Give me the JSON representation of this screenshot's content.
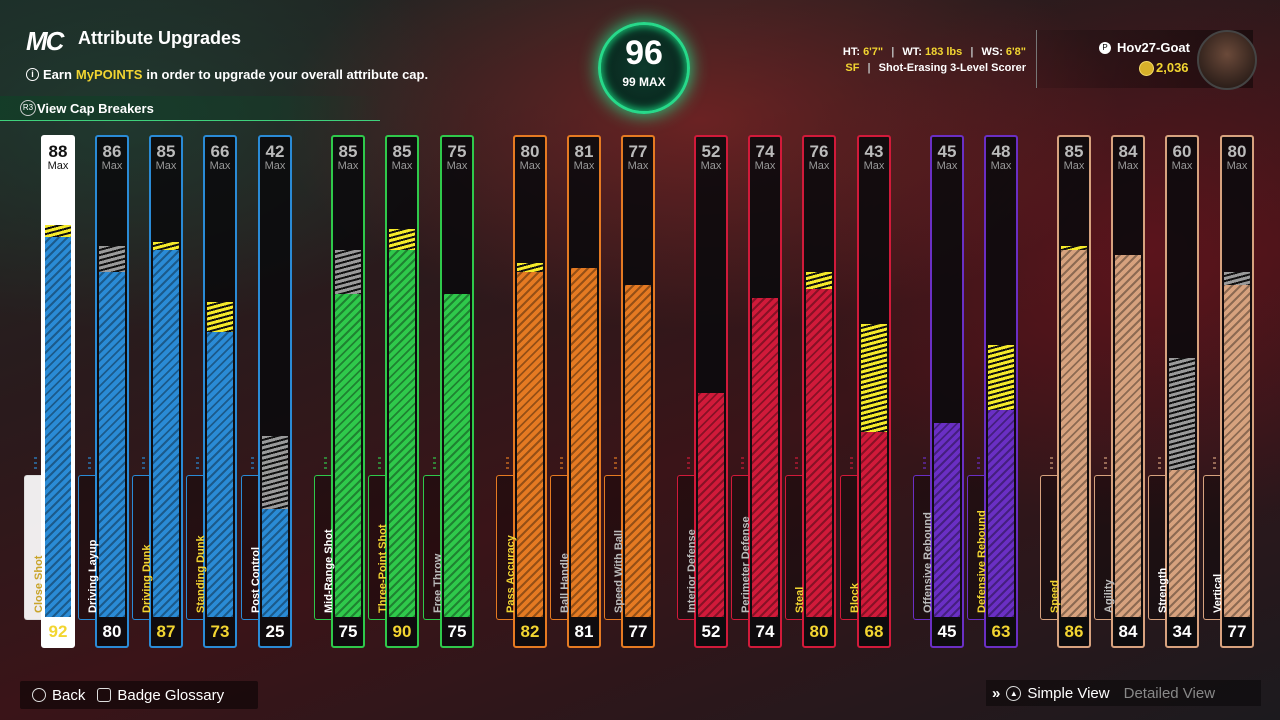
{
  "header": {
    "logo": "MC",
    "title": "Attribute Upgrades",
    "subtitle_pre": "Earn",
    "subtitle_highlight": "MyPOINTS",
    "subtitle_post": "in order to upgrade your overall attribute cap.",
    "cap_breakers_label": "View Cap Breakers"
  },
  "overall": {
    "value": "96",
    "max_label": "99 MAX"
  },
  "player": {
    "ht_label": "HT:",
    "ht": "6'7\"",
    "wt_label": "WT:",
    "wt": "183 lbs",
    "ws_label": "WS:",
    "ws": "6'8\"",
    "position": "SF",
    "archetype": "Shot-Erasing 3-Level Scorer",
    "gamertag": "Hov27-Goat",
    "vc": "2,036"
  },
  "max_label": "Max",
  "colors": {
    "blue": "#2a8bd6",
    "green": "#2fc94b",
    "orange": "#e57a22",
    "red": "#d11a3a",
    "purple": "#6a2fc4",
    "tan": "#d7a27e"
  },
  "attributes": [
    {
      "name": "Close Shot",
      "cap": "88",
      "current": "92",
      "yellow": 3,
      "gray": 0,
      "color": "blue",
      "selected": true,
      "label_yellow": true
    },
    {
      "name": "Driving Layup",
      "cap": "86",
      "current": "80",
      "yellow": 0,
      "gray": 6,
      "color": "blue",
      "label_yellow": false
    },
    {
      "name": "Driving Dunk",
      "cap": "85",
      "current": "87",
      "yellow": 2,
      "gray": 0,
      "color": "blue",
      "label_yellow": true
    },
    {
      "name": "Standing Dunk",
      "cap": "66",
      "current": "73",
      "yellow": 7,
      "gray": 0,
      "color": "blue",
      "label_yellow": true
    },
    {
      "name": "Post Control",
      "cap": "42",
      "current": "25",
      "yellow": 0,
      "gray": 17,
      "color": "blue",
      "label_yellow": false
    },
    {
      "name": "Mid-Range Shot",
      "cap": "85",
      "current": "75",
      "yellow": 0,
      "gray": 10,
      "color": "green",
      "label_yellow": false
    },
    {
      "name": "Three-Point Shot",
      "cap": "85",
      "current": "90",
      "yellow": 5,
      "gray": 0,
      "color": "green",
      "label_yellow": true
    },
    {
      "name": "Free Throw",
      "cap": "75",
      "current": "75",
      "yellow": 0,
      "gray": 0,
      "color": "green",
      "label_yellow": false
    },
    {
      "name": "Pass Accuracy",
      "cap": "80",
      "current": "82",
      "yellow": 2,
      "gray": 0,
      "color": "orange",
      "label_yellow": true
    },
    {
      "name": "Ball Handle",
      "cap": "81",
      "current": "81",
      "yellow": 0,
      "gray": 0,
      "color": "orange",
      "label_yellow": false
    },
    {
      "name": "Speed With Ball",
      "cap": "77",
      "current": "77",
      "yellow": 0,
      "gray": 0,
      "color": "orange",
      "label_yellow": false
    },
    {
      "name": "Interior Defense",
      "cap": "52",
      "current": "52",
      "yellow": 0,
      "gray": 0,
      "color": "red",
      "label_yellow": false
    },
    {
      "name": "Perimeter Defense",
      "cap": "74",
      "current": "74",
      "yellow": 0,
      "gray": 0,
      "color": "red",
      "label_yellow": false
    },
    {
      "name": "Steal",
      "cap": "76",
      "current": "80",
      "yellow": 4,
      "gray": 0,
      "color": "red",
      "label_yellow": true
    },
    {
      "name": "Block",
      "cap": "43",
      "current": "68",
      "yellow": 25,
      "gray": 0,
      "color": "red",
      "label_yellow": true
    },
    {
      "name": "Offensive Rebound",
      "cap": "45",
      "current": "45",
      "yellow": 0,
      "gray": 0,
      "color": "purple",
      "label_yellow": false
    },
    {
      "name": "Defensive Rebound",
      "cap": "48",
      "current": "63",
      "yellow": 15,
      "gray": 0,
      "color": "purple",
      "label_yellow": true
    },
    {
      "name": "Speed",
      "cap": "85",
      "current": "86",
      "yellow": 1,
      "gray": 0,
      "color": "tan",
      "label_yellow": true
    },
    {
      "name": "Agility",
      "cap": "84",
      "current": "84",
      "yellow": 0,
      "gray": 0,
      "color": "tan",
      "label_yellow": false
    },
    {
      "name": "Strength",
      "cap": "60",
      "current": "34",
      "yellow": 0,
      "gray": 26,
      "color": "tan",
      "label_yellow": false
    },
    {
      "name": "Vertical",
      "cap": "80",
      "current": "77",
      "yellow": 0,
      "gray": 3,
      "color": "tan",
      "label_yellow": false
    }
  ],
  "footer": {
    "back_label": "Back",
    "glossary_label": "Badge Glossary",
    "simple_view_label": "Simple View",
    "detailed_view_label": "Detailed View"
  }
}
